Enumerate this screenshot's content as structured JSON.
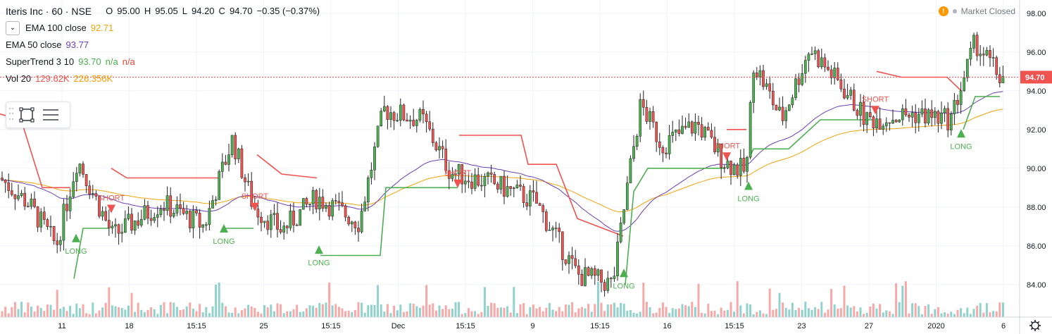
{
  "symbol": {
    "title": "Iteris Inc · 60 · NSE"
  },
  "ohlc": {
    "o_label": "O",
    "o": "95.00",
    "h_label": "H",
    "h": "95.05",
    "l_label": "L",
    "l": "94.20",
    "c_label": "C",
    "c": "94.70",
    "change": "−0.35 (−0.37%)"
  },
  "legend": {
    "collapse_icon": "chevron-down-icon",
    "ema100": {
      "name": "EMA 100 close",
      "value": "92.71",
      "color": "#f0a30a"
    },
    "ema50": {
      "name": "EMA 50 close",
      "value": "93.77",
      "color": "#6a3fb5"
    },
    "supertrend": {
      "name": "SuperTrend 3 10",
      "value": "93.70",
      "v2": "n/a",
      "v3": "n/a",
      "up_color": "#4caf50",
      "down_color": "#f44336"
    },
    "vol": {
      "name": "Vol 20",
      "value": "129.62K",
      "ma": "226.356K",
      "color_value": "#ef5350",
      "color_ma": "#ff9800"
    }
  },
  "market_status": {
    "text": "Market Closed",
    "icon": "info-icon"
  },
  "toolbar": {
    "icons": [
      "rectangle-icon",
      "settings-lines-icon"
    ]
  },
  "last_price": {
    "value": "94.70",
    "color": "#ef5350"
  },
  "settings_icon": "gear-icon",
  "chart_data": {
    "type": "candlestick",
    "ylim": [
      82.5,
      98.5
    ],
    "yticks": [
      "98.00",
      "96.00",
      "94.00",
      "92.00",
      "90.00",
      "88.00",
      "86.00",
      "84.00"
    ],
    "xticks": [
      "11",
      "18",
      "15:15",
      "25",
      "15:15",
      "Dec",
      "15:15",
      "9",
      "15:15",
      "16",
      "15:15",
      "23",
      "27",
      "2020",
      "6"
    ],
    "up_color": "#4caf50",
    "down_color": "#ef5350",
    "signals": [
      {
        "label": "LONG",
        "type": "long",
        "price": 86.4
      },
      {
        "label": "SHORT",
        "type": "short",
        "price": 87.9
      },
      {
        "label": "LONG",
        "type": "long",
        "price": 86.9
      },
      {
        "label": "SHORT",
        "type": "short",
        "price": 88.0
      },
      {
        "label": "LONG",
        "type": "long",
        "price": 85.8
      },
      {
        "label": "SHORT",
        "type": "short",
        "price": 89.2
      },
      {
        "label": "LONG",
        "type": "long",
        "price": 84.6
      },
      {
        "label": "SHORT",
        "type": "short",
        "price": 90.6
      },
      {
        "label": "LONG",
        "type": "long",
        "price": 89.1
      },
      {
        "label": "SHORT",
        "type": "short",
        "price": 93.0
      },
      {
        "label": "LONG",
        "type": "long",
        "price": 91.8
      }
    ]
  }
}
